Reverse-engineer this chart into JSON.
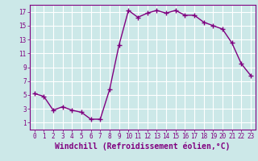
{
  "x": [
    0,
    1,
    2,
    3,
    4,
    5,
    6,
    7,
    8,
    9,
    10,
    11,
    12,
    13,
    14,
    15,
    16,
    17,
    18,
    19,
    20,
    21,
    22,
    23
  ],
  "y": [
    5.2,
    4.8,
    2.8,
    3.3,
    2.8,
    2.5,
    1.5,
    1.5,
    5.8,
    12.2,
    17.2,
    16.2,
    16.8,
    17.2,
    16.8,
    17.2,
    16.5,
    16.5,
    15.5,
    15.0,
    14.5,
    12.5,
    9.5,
    7.8
  ],
  "line_color": "#800080",
  "marker": "+",
  "marker_size": 4,
  "line_width": 1.0,
  "xlabel": "Windchill (Refroidissement éolien,°C)",
  "xlabel_fontsize": 7,
  "ylim": [
    0,
    18
  ],
  "xlim": [
    -0.5,
    23.5
  ],
  "yticks": [
    1,
    3,
    5,
    7,
    9,
    11,
    13,
    15,
    17
  ],
  "xtick_labels": [
    "0",
    "1",
    "2",
    "3",
    "4",
    "5",
    "6",
    "7",
    "8",
    "9",
    "10",
    "11",
    "12",
    "13",
    "14",
    "15",
    "16",
    "17",
    "18",
    "19",
    "20",
    "21",
    "22",
    "23"
  ],
  "tick_fontsize": 5.5,
  "bg_color": "#cce8e8",
  "grid_color": "#ffffff",
  "tick_color": "#800080",
  "label_color": "#800080",
  "spine_color": "#800080"
}
